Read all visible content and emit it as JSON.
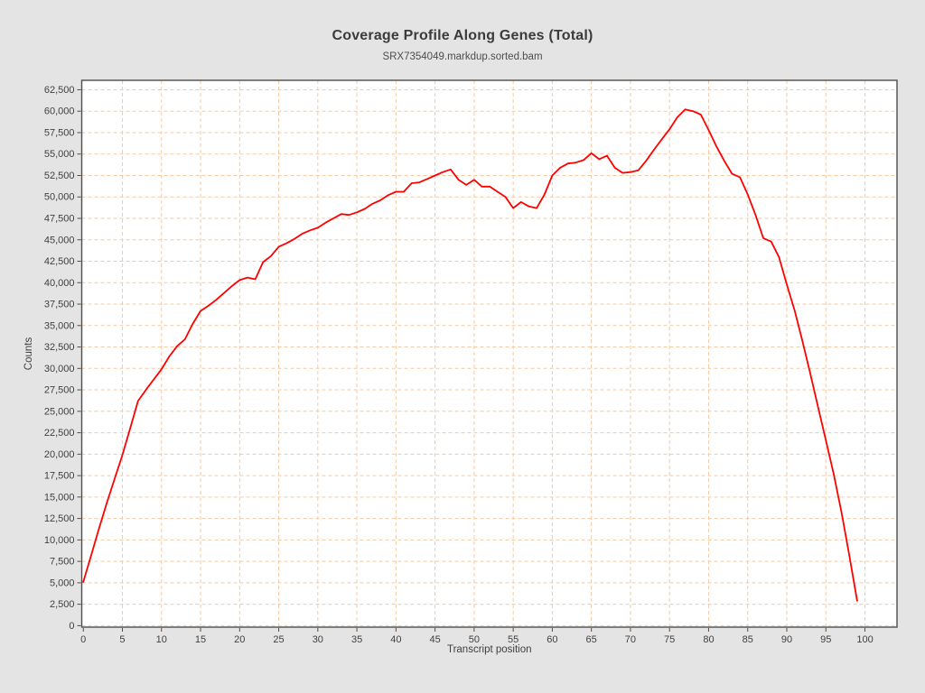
{
  "colors": {
    "figure_background": "#e4e4e4",
    "plot_background": "#ffffff",
    "grid": "#f5c9a2",
    "plot_border": "#4d4d4d",
    "tick": "#4d4d4d",
    "line": "#ff0000",
    "text": "#3f3f3f"
  },
  "chart_data": {
    "type": "line",
    "title": "Coverage Profile Along Genes (Total)",
    "subtitle": "SRX7354049.markdup.sorted.bam",
    "xlabel": "Transcript position",
    "ylabel": "Counts",
    "grid": "dashed",
    "legend_position": "none",
    "xlim": [
      -0.2,
      104.1
    ],
    "ylim": [
      -170,
      63600
    ],
    "x_ticks": [
      0,
      5,
      10,
      15,
      20,
      25,
      30,
      35,
      40,
      45,
      50,
      55,
      60,
      65,
      70,
      75,
      80,
      85,
      90,
      95,
      100
    ],
    "y_ticks": [
      0,
      2500,
      5000,
      7500,
      10000,
      12500,
      15000,
      17500,
      20000,
      22500,
      25000,
      27500,
      30000,
      32500,
      35000,
      37500,
      40000,
      42500,
      45000,
      47500,
      50000,
      52500,
      55000,
      57500,
      60000,
      62500
    ],
    "series": [
      {
        "name": "SRX7354049.markdup.sorted.bam",
        "color": "#ff0000",
        "x": [
          0,
          1,
          2,
          3,
          4,
          5,
          6,
          7,
          8,
          9,
          10,
          11,
          12,
          13,
          14,
          15,
          16,
          17,
          18,
          19,
          20,
          21,
          22,
          23,
          24,
          25,
          26,
          27,
          28,
          29,
          30,
          31,
          32,
          33,
          34,
          35,
          36,
          37,
          38,
          39,
          40,
          41,
          42,
          43,
          44,
          45,
          46,
          47,
          48,
          49,
          50,
          51,
          52,
          53,
          54,
          55,
          56,
          57,
          58,
          59,
          60,
          61,
          62,
          63,
          64,
          65,
          66,
          67,
          68,
          69,
          70,
          71,
          72,
          73,
          74,
          75,
          76,
          77,
          78,
          79,
          80,
          81,
          82,
          83,
          84,
          85,
          86,
          87,
          88,
          89,
          90,
          91,
          92,
          93,
          94,
          95,
          96,
          97,
          98,
          99
        ],
        "values": [
          5100,
          8200,
          11300,
          14300,
          17100,
          19900,
          23000,
          26200,
          27500,
          28700,
          29900,
          31400,
          32600,
          33400,
          35200,
          36700,
          37300,
          38000,
          38800,
          39600,
          40300,
          40600,
          40400,
          42400,
          43100,
          44200,
          44600,
          45100,
          45700,
          46100,
          46400,
          47000,
          47500,
          48000,
          47900,
          48200,
          48600,
          49200,
          49600,
          50200,
          50600,
          50600,
          51600,
          51700,
          52100,
          52500,
          52900,
          53200,
          52000,
          51400,
          52000,
          51200,
          51200,
          50600,
          50000,
          48700,
          49400,
          48900,
          48700,
          50300,
          52500,
          53400,
          53900,
          54000,
          54300,
          55100,
          54400,
          54800,
          53400,
          52800,
          52900,
          53100,
          54200,
          55500,
          56700,
          57900,
          59300,
          60200,
          60000,
          59600,
          57800,
          55900,
          54200,
          52700,
          52300,
          50300,
          47900,
          45200,
          44800,
          43000,
          39800,
          36800,
          33200,
          29400,
          25500,
          21600,
          17700,
          13200,
          8200,
          2900
        ]
      }
    ]
  }
}
